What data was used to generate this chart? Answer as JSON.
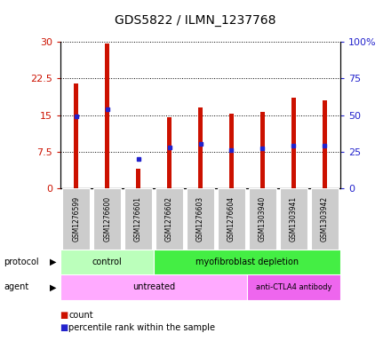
{
  "title": "GDS5822 / ILMN_1237768",
  "samples": [
    "GSM1276599",
    "GSM1276600",
    "GSM1276601",
    "GSM1276602",
    "GSM1276603",
    "GSM1276604",
    "GSM1303940",
    "GSM1303941",
    "GSM1303942"
  ],
  "counts": [
    21.5,
    29.7,
    4.0,
    14.5,
    16.5,
    15.3,
    15.7,
    18.5,
    18.0
  ],
  "percentiles": [
    49.5,
    54.0,
    20.0,
    28.0,
    30.5,
    26.0,
    27.5,
    29.5,
    29.0
  ],
  "ylim_left": [
    0,
    30
  ],
  "ylim_right": [
    0,
    100
  ],
  "yticks_left": [
    0,
    7.5,
    15,
    22.5,
    30
  ],
  "ytick_labels_left": [
    "0",
    "7.5",
    "15",
    "22.5",
    "30"
  ],
  "yticks_right": [
    0,
    25,
    50,
    75,
    100
  ],
  "ytick_labels_right": [
    "0",
    "25",
    "50",
    "75",
    "100%"
  ],
  "bar_color": "#cc1100",
  "percentile_color": "#2222cc",
  "protocol_groups": [
    {
      "label": "control",
      "start": 0,
      "end": 3,
      "color": "#bbffbb"
    },
    {
      "label": "myofibroblast depletion",
      "start": 3,
      "end": 9,
      "color": "#44ee44"
    }
  ],
  "agent_groups": [
    {
      "label": "untreated",
      "start": 0,
      "end": 6,
      "color": "#ffaaff"
    },
    {
      "label": "anti-CTLA4 antibody",
      "start": 6,
      "end": 9,
      "color": "#ee66ee"
    }
  ],
  "background_color": "#ffffff",
  "bar_width": 0.15,
  "sample_box_color": "#cccccc",
  "left_label_color": "#cc1100",
  "right_label_color": "#2222cc"
}
